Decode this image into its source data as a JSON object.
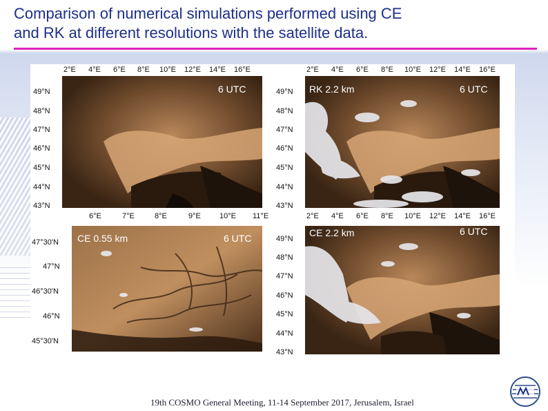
{
  "slide": {
    "title_line1": "Comparison of numerical simulations performed using CE",
    "title_line2": "and RK at different resolutions with the satellite data.",
    "footer": "19th COSMO General Meeting, 11-14 September 2017, Jerusalem, Israel",
    "accent_color": "#e020c0",
    "title_color": "#1d2f8a"
  },
  "panels": [
    {
      "id": "top-left",
      "label_left": "",
      "label_right": "6 UTC",
      "lon_ticks": [
        "2°E",
        "4°E",
        "6°E",
        "8°E",
        "10°E",
        "12°E",
        "14°E",
        "16°E"
      ],
      "lat_ticks": [
        "49°N",
        "48°N",
        "47°N",
        "46°N",
        "45°N",
        "44°N",
        "43°N"
      ]
    },
    {
      "id": "top-right",
      "label_left": "RK 2.2 km",
      "label_right": "6 UTC",
      "lon_ticks_top": [
        "2°E",
        "4°E",
        "6°E",
        "8°E",
        "10°E",
        "12°E",
        "14°E",
        "16°E"
      ],
      "lon_ticks_bottom": [
        "2°E",
        "4°E",
        "6°E",
        "8°E",
        "10°E",
        "12°E",
        "14°E",
        "16°E"
      ],
      "lat_ticks": [
        "49°N",
        "48°N",
        "47°N",
        "46°N",
        "45°N",
        "44°N",
        "43°N"
      ]
    },
    {
      "id": "bottom-left",
      "label_left": "CE 0.55 km",
      "label_right": "6 UTC",
      "lon_ticks": [
        "6°E",
        "7°E",
        "8°E",
        "9°E",
        "10°E",
        "11°E"
      ],
      "lat_ticks": [
        "47°30'N",
        "47°N",
        "46°30'N",
        "46°N",
        "45°30'N"
      ]
    },
    {
      "id": "bottom-right",
      "label_left": "CE 2.2 km",
      "label_right": "6 UTC",
      "lat_ticks": [
        "49°N",
        "48°N",
        "47°N",
        "46°N",
        "45°N",
        "44°N",
        "43°N"
      ]
    }
  ]
}
